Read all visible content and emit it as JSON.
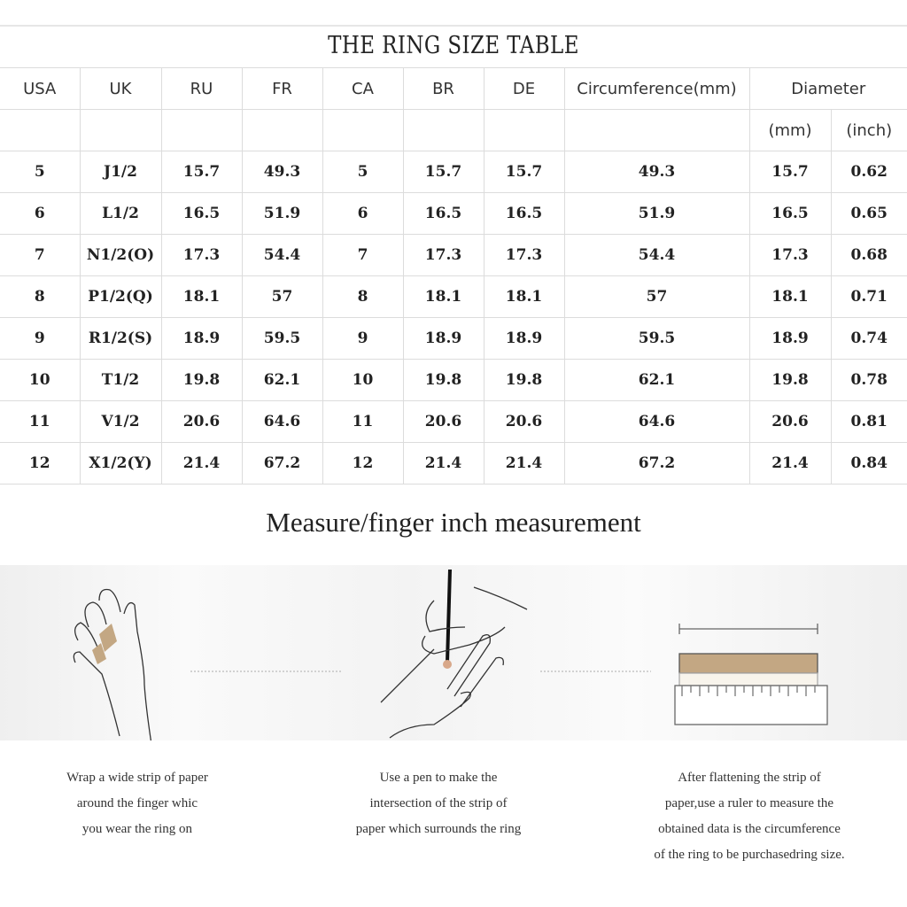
{
  "title": "THE RING SIZE TABLE",
  "table": {
    "headers": [
      "USA",
      "UK",
      "RU",
      "FR",
      "CA",
      "BR",
      "DE",
      "Circumference(mm)",
      "Diameter"
    ],
    "subheaders": [
      "(mm)",
      "(inch)"
    ],
    "rows": [
      [
        "5",
        "J1/2",
        "15.7",
        "49.3",
        "5",
        "15.7",
        "15.7",
        "49.3",
        "15.7",
        "0.62"
      ],
      [
        "6",
        "L1/2",
        "16.5",
        "51.9",
        "6",
        "16.5",
        "16.5",
        "51.9",
        "16.5",
        "0.65"
      ],
      [
        "7",
        "N1/2(O)",
        "17.3",
        "54.4",
        "7",
        "17.3",
        "17.3",
        "54.4",
        "17.3",
        "0.68"
      ],
      [
        "8",
        "P1/2(Q)",
        "18.1",
        "57",
        "8",
        "18.1",
        "18.1",
        "57",
        "18.1",
        "0.71"
      ],
      [
        "9",
        "R1/2(S)",
        "18.9",
        "59.5",
        "9",
        "18.9",
        "18.9",
        "59.5",
        "18.9",
        "0.74"
      ],
      [
        "10",
        "T1/2",
        "19.8",
        "62.1",
        "10",
        "19.8",
        "19.8",
        "62.1",
        "19.8",
        "0.78"
      ],
      [
        "11",
        "V1/2",
        "20.6",
        "64.6",
        "11",
        "20.6",
        "20.6",
        "64.6",
        "20.6",
        "0.81"
      ],
      [
        "12",
        "X1/2(Y)",
        "21.4",
        "67.2",
        "12",
        "21.4",
        "21.4",
        "67.2",
        "21.4",
        "0.84"
      ]
    ]
  },
  "subtitle": "Measure/finger inch measurement",
  "steps": [
    {
      "icon": "hand-wrap-paper-icon",
      "lines": [
        "Wrap a wide strip of paper",
        "around the finger whic",
        "you wear the ring on"
      ]
    },
    {
      "icon": "hand-pen-mark-icon",
      "lines": [
        "Use a pen to make the",
        "intersection of the strip of",
        "paper which surrounds the ring"
      ]
    },
    {
      "icon": "ruler-strip-icon",
      "lines": [
        "After flattening the strip of",
        "paper,use a ruler to measure the",
        "obtained data is the circumference",
        "of the ring to be purchasedring size."
      ]
    }
  ],
  "colors": {
    "paper": "#c3a783",
    "grid": "#dcdcdc"
  }
}
